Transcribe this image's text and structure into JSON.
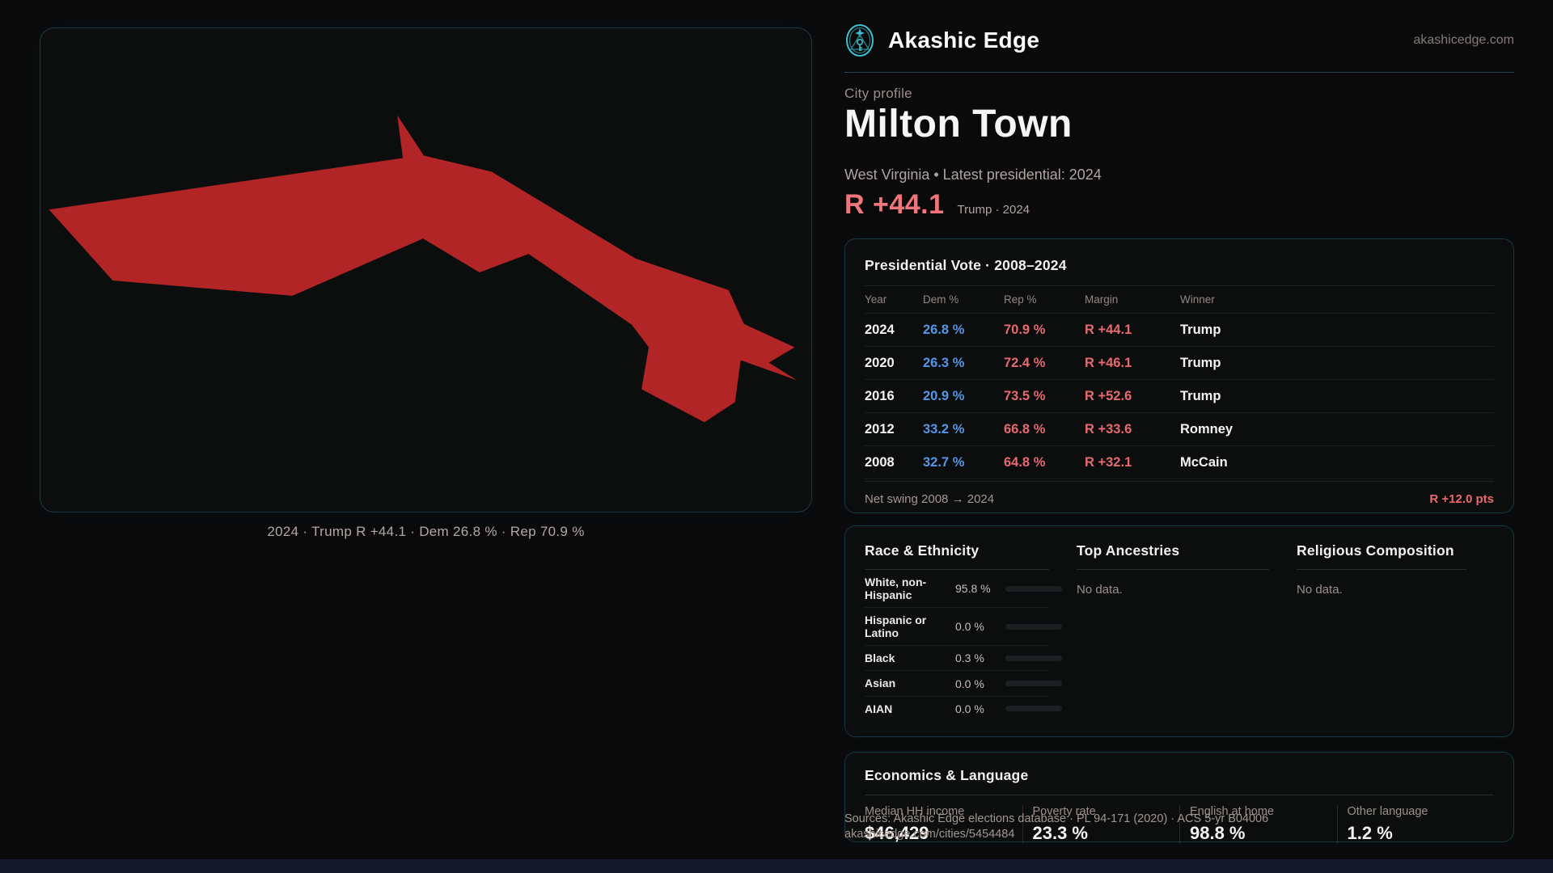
{
  "brand": {
    "name": "Akashic Edge",
    "domain": "akashicedge.com",
    "logo_icon": "akashic-emblem-icon"
  },
  "profile": {
    "kicker": "City profile",
    "city": "Milton Town",
    "subtitle": "West Virginia • Latest presidential: 2024",
    "margin": "R +44.1",
    "margin_note": "Trump · 2024"
  },
  "map": {
    "caption": "2024 · Trump R +44.1 · Dem 26.8 % · Rep 70.9 %",
    "shape_fill": "#b22526"
  },
  "vote": {
    "title": "Presidential Vote · 2008–2024",
    "columns": [
      "Year",
      "Dem %",
      "Rep %",
      "Margin",
      "Winner"
    ],
    "rows": [
      {
        "year": "2024",
        "dem": "26.8 %",
        "rep": "70.9 %",
        "margin": "R +44.1",
        "winner": "Trump"
      },
      {
        "year": "2020",
        "dem": "26.3 %",
        "rep": "72.4 %",
        "margin": "R +46.1",
        "winner": "Trump"
      },
      {
        "year": "2016",
        "dem": "20.9 %",
        "rep": "73.5 %",
        "margin": "R +52.6",
        "winner": "Trump"
      },
      {
        "year": "2012",
        "dem": "33.2 %",
        "rep": "66.8 %",
        "margin": "R +33.6",
        "winner": "Romney"
      },
      {
        "year": "2008",
        "dem": "32.7 %",
        "rep": "64.8 %",
        "margin": "R +32.1",
        "winner": "McCain"
      }
    ],
    "footer_label": "Net swing 2008 → 2024",
    "footer_value": "R +12.0 pts"
  },
  "demographics": {
    "race": {
      "title": "Race & Ethnicity",
      "rows": [
        {
          "label": "White, non-Hispanic",
          "value": "95.8 %",
          "pct": 95.8
        },
        {
          "label": "Hispanic or Latino",
          "value": "0.0 %",
          "pct": 0
        },
        {
          "label": "Black",
          "value": "0.3 %",
          "pct": 0.3
        },
        {
          "label": "Asian",
          "value": "0.0 %",
          "pct": 0
        },
        {
          "label": "AIAN",
          "value": "0.0 %",
          "pct": 0
        }
      ]
    },
    "ancestries": {
      "title": "Top Ancestries",
      "empty": "No data."
    },
    "religion": {
      "title": "Religious Composition",
      "empty": "No data."
    }
  },
  "economics": {
    "title": "Economics & Language",
    "stats": [
      {
        "label": "Median HH income",
        "value": "$46,429"
      },
      {
        "label": "Poverty rate",
        "value": "23.3 %"
      },
      {
        "label": "English at home",
        "value": "98.8 %"
      },
      {
        "label": "Other language",
        "value": "1.2 %"
      }
    ]
  },
  "footer": {
    "sources": "Sources: Akashic Edge elections database · PL 94-171 (2020) · ACS 5-yr B04006",
    "permalink": "akashicedge.com/cities/5454484"
  },
  "chart_data": {
    "type": "table",
    "title": "Presidential Vote · 2008–2024",
    "columns": [
      "Year",
      "Dem %",
      "Rep %",
      "Margin",
      "Winner"
    ],
    "rows": [
      [
        2024,
        26.8,
        70.9,
        "R +44.1",
        "Trump"
      ],
      [
        2020,
        26.3,
        72.4,
        "R +46.1",
        "Trump"
      ],
      [
        2016,
        20.9,
        73.5,
        "R +52.6",
        "Trump"
      ],
      [
        2012,
        33.2,
        66.8,
        "R +33.6",
        "Romney"
      ],
      [
        2008,
        32.7,
        64.8,
        "R +32.1",
        "McCain"
      ]
    ],
    "net_swing_pts": 12.0,
    "race_bar_values": {
      "White, non-Hispanic": 95.8,
      "Hispanic or Latino": 0.0,
      "Black": 0.3,
      "Asian": 0.0,
      "AIAN": 0.0
    }
  },
  "colors": {
    "background": "#0a0a0b",
    "panel_border_teal": "#1a3b41",
    "accent_rep_red": "#e66a70",
    "accent_margin_red": "#f0767c",
    "accent_dem_blue": "#5596e6",
    "map_fill_red": "#b22526",
    "bar_fill": "#a9b6c2",
    "muted_text": "#9a8e8a",
    "bottom_bar": "#141829",
    "logo_teal": "#3fc0cf"
  }
}
